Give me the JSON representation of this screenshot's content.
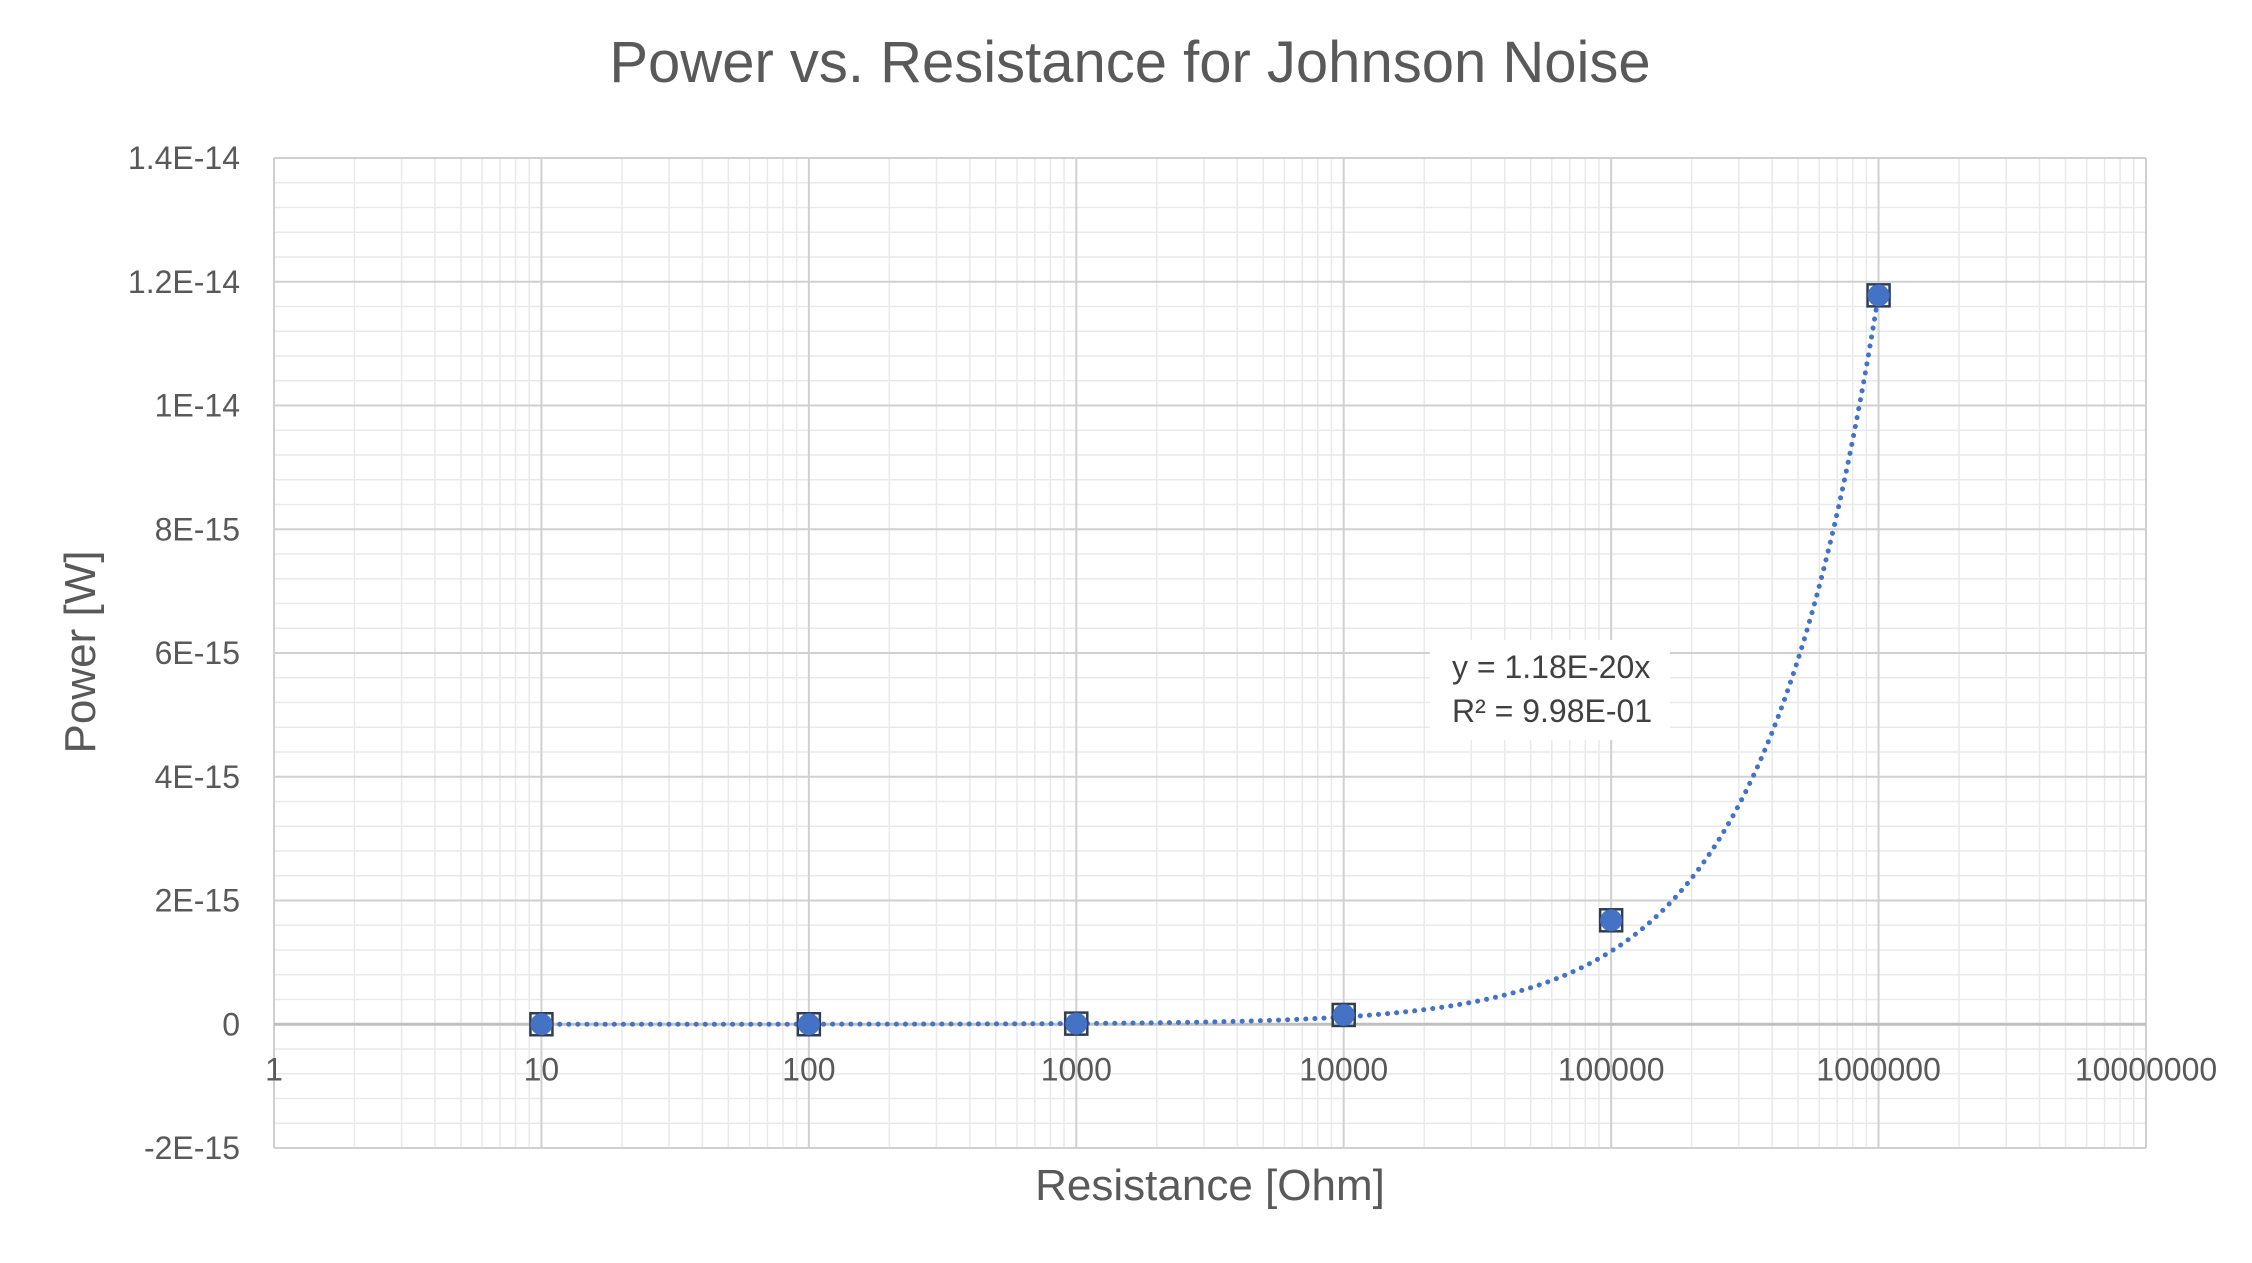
{
  "chart_data": {
    "type": "scatter",
    "title": "Power vs. Resistance for Johnson Noise",
    "xlabel": "Resistance [Ohm]",
    "ylabel": "Power [W]",
    "x_scale": "log",
    "xlim": [
      1,
      10000000
    ],
    "ylim": [
      -2e-15,
      1.4e-14
    ],
    "x_ticks": [
      1,
      10,
      100,
      1000,
      10000,
      100000,
      1000000,
      10000000
    ],
    "x_tick_labels": [
      "1",
      "10",
      "100",
      "1000",
      "10000",
      "100000",
      "1000000",
      "10000000"
    ],
    "y_ticks": [
      -2e-15,
      0,
      2e-15,
      4e-15,
      6e-15,
      8e-15,
      1e-14,
      1.2e-14,
      1.4e-14
    ],
    "y_tick_labels": [
      "-2E-15",
      "0",
      "2E-15",
      "4E-15",
      "6E-15",
      "8E-15",
      "1E-14",
      "1.2E-14",
      "1.4E-14"
    ],
    "grid": true,
    "minor_grid": true,
    "legend": "none",
    "series": [
      {
        "color": "#4472C4",
        "x": [
          10,
          100,
          1000,
          10000,
          100000,
          1000000
        ],
        "y": [
          0,
          0,
          1e-17,
          1.5e-16,
          1.68e-15,
          1.178e-14
        ]
      }
    ],
    "trendline": {
      "type": "linear",
      "style": "dotted",
      "color": "#4472C4",
      "slope": 1.18e-20,
      "equation": "y = 1.18E-20x",
      "r_squared": "R² = 9.98E-01"
    }
  }
}
